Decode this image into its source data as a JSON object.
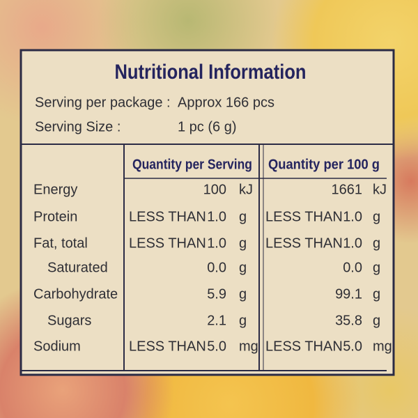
{
  "header": {
    "title": "Nutritional Information"
  },
  "serving": [
    {
      "label": "Serving per package :",
      "value": "Approx 166 pcs"
    },
    {
      "label": "Serving Size :",
      "value": "1 pc (6 g)"
    }
  ],
  "table": {
    "headers": [
      "Quantity per Serving",
      "Quantity per 100 g"
    ],
    "rows": [
      {
        "name": "Energy",
        "serving": {
          "value": "100",
          "unit": "kJ"
        },
        "per100": {
          "value": "1661",
          "unit": "kJ"
        }
      },
      {
        "name": "Protein",
        "serving": {
          "qualifier": "LESS THAN",
          "value": "1.0",
          "unit": "g"
        },
        "per100": {
          "qualifier": "LESS THAN",
          "value": "1.0",
          "unit": "g"
        }
      },
      {
        "name": "Fat, total",
        "serving": {
          "qualifier": "LESS THAN",
          "value": "1.0",
          "unit": "g"
        },
        "per100": {
          "qualifier": "LESS THAN",
          "value": "1.0",
          "unit": "g"
        }
      },
      {
        "name": "Saturated",
        "indent": true,
        "serving": {
          "value": "0.0",
          "unit": "g"
        },
        "per100": {
          "value": "0.0",
          "unit": "g"
        }
      },
      {
        "name": "Carbohydrate",
        "serving": {
          "value": "5.9",
          "unit": "g"
        },
        "per100": {
          "value": "99.1",
          "unit": "g"
        }
      },
      {
        "name": "Sugars",
        "indent": true,
        "serving": {
          "value": "2.1",
          "unit": "g"
        },
        "per100": {
          "value": "35.8",
          "unit": "g"
        }
      },
      {
        "name": "Sodium",
        "serving": {
          "qualifier": "LESS THAN",
          "value": "5.0",
          "unit": "mg"
        },
        "per100": {
          "qualifier": "LESS THAN",
          "value": "5.0",
          "unit": "mg"
        }
      }
    ]
  }
}
